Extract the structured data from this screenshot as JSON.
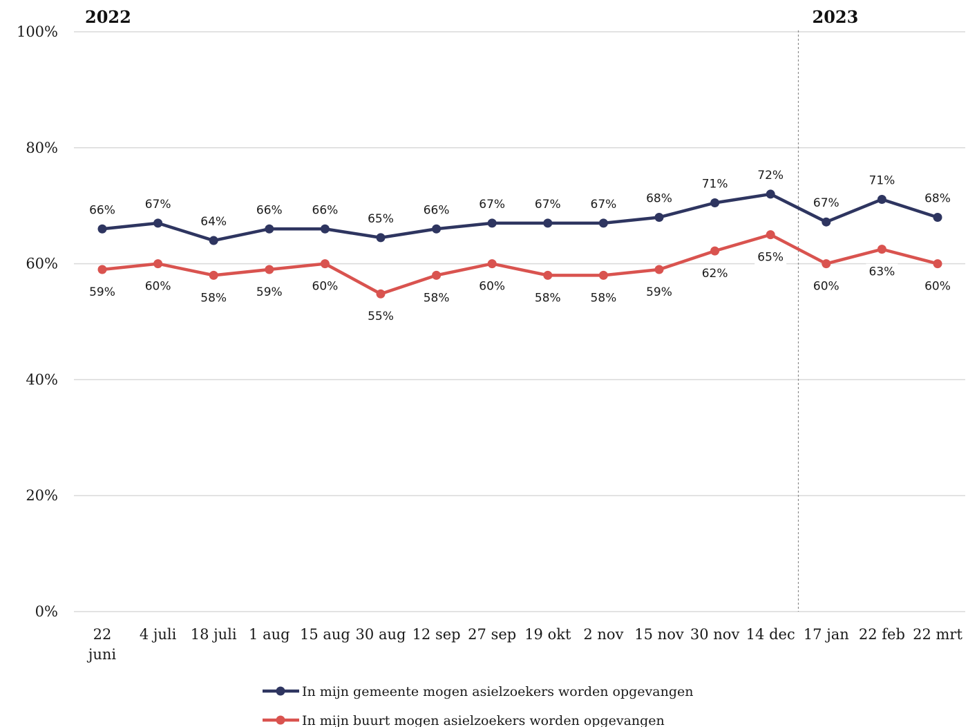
{
  "chart_data": {
    "type": "line",
    "categories": [
      "22 juni",
      "4 juli",
      "18 juli",
      "1 aug",
      "15 aug",
      "30 aug",
      "12 sep",
      "27 sep",
      "19 okt",
      "2 nov",
      "15 nov",
      "30 nov",
      "14 dec",
      "17 jan",
      "22 feb",
      "22 mrt"
    ],
    "year_markers": [
      {
        "label": "2022",
        "category_index": 0
      },
      {
        "label": "2023",
        "category_index": 13
      }
    ],
    "series": [
      {
        "name": "In mijn gemeente mogen asielzoekers worden opgevangen",
        "color": "#2e3560",
        "values": [
          66,
          67,
          64,
          66,
          66,
          64.5,
          66,
          67,
          67,
          67,
          68,
          70.5,
          72,
          67.2,
          71.1,
          68
        ],
        "labels": [
          "66%",
          "67%",
          "64%",
          "66%",
          "66%",
          "65%",
          "66%",
          "67%",
          "67%",
          "67%",
          "68%",
          "71%",
          "72%",
          "67%",
          "71%",
          "68%"
        ]
      },
      {
        "name": "In mijn buurt mogen asielzoekers worden opgevangen",
        "color": "#d9534f",
        "values": [
          59,
          60,
          58,
          59,
          60,
          54.8,
          58,
          60,
          58,
          58,
          59,
          62.2,
          65,
          60,
          62.5,
          60
        ],
        "labels": [
          "59%",
          "60%",
          "58%",
          "59%",
          "60%",
          "55%",
          "58%",
          "60%",
          "58%",
          "58%",
          "59%",
          "62%",
          "65%",
          "60%",
          "63%",
          "60%"
        ]
      }
    ],
    "yticks": [
      0,
      20,
      40,
      60,
      80,
      100
    ],
    "ytick_labels": [
      "0%",
      "20%",
      "40%",
      "60%",
      "80%",
      "100%"
    ],
    "ylim": [
      0,
      100
    ],
    "grid": true,
    "legend_position": "bottom"
  }
}
